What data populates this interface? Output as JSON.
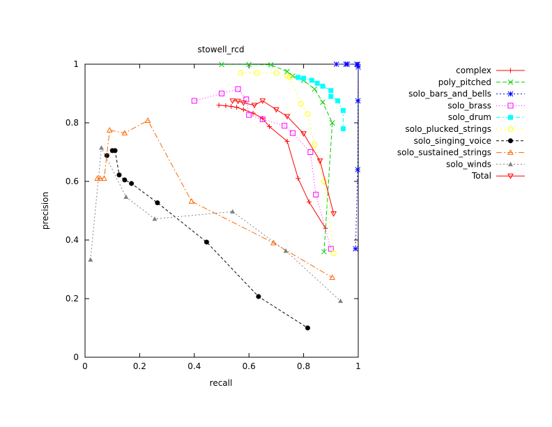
{
  "chart_data": {
    "type": "line",
    "title": "stowell_rcd",
    "xlabel": "recall",
    "ylabel": "precision",
    "xlim": [
      0,
      1
    ],
    "ylim": [
      0,
      1
    ],
    "x_ticks": [
      "0",
      "0.2",
      "0.4",
      "0.6",
      "0.8",
      "1"
    ],
    "y_ticks": [
      "0",
      "0.2",
      "0.4",
      "0.6",
      "0.8",
      "1"
    ],
    "grid": false,
    "legend_position": "right",
    "series": [
      {
        "name": "complex",
        "color": "#ff0000",
        "marker": "plus",
        "dash": "",
        "x": [
          0.49,
          0.515,
          0.535,
          0.555,
          0.58,
          0.615,
          0.65,
          0.675,
          0.74,
          0.78,
          0.82,
          0.88
        ],
        "y": [
          0.86,
          0.858,
          0.856,
          0.853,
          0.845,
          0.833,
          0.815,
          0.787,
          0.737,
          0.61,
          0.53,
          0.44
        ]
      },
      {
        "name": "poly_pitched",
        "color": "#00cc00",
        "marker": "x",
        "dash": "6,3",
        "x": [
          0.5,
          0.6,
          0.68,
          0.74,
          0.76,
          0.8,
          0.84,
          0.87,
          0.905,
          0.875
        ],
        "y": [
          0.999,
          0.999,
          0.998,
          0.975,
          0.96,
          0.945,
          0.915,
          0.87,
          0.8,
          0.36
        ]
      },
      {
        "name": "solo_bars_and_bells",
        "color": "#0000ff",
        "marker": "star",
        "dash": "2,3",
        "x": [
          0.92,
          0.955,
          0.96,
          0.995,
          0.998,
          1.0,
          0.999,
          0.998,
          0.99
        ],
        "y": [
          1.0,
          1.0,
          1.0,
          1.0,
          0.999,
          0.99,
          0.875,
          0.64,
          0.37
        ]
      },
      {
        "name": "solo_brass",
        "color": "#ff00ff",
        "marker": "box",
        "dash": "1,3",
        "x": [
          0.4,
          0.5,
          0.56,
          0.59,
          0.6,
          0.65,
          0.73,
          0.76,
          0.825,
          0.845,
          0.9
        ],
        "y": [
          0.875,
          0.9,
          0.915,
          0.88,
          0.827,
          0.812,
          0.79,
          0.765,
          0.7,
          0.555,
          0.37
        ]
      },
      {
        "name": "solo_drum",
        "color": "#00ffff",
        "marker": "filledbox",
        "dash": "6,3,2,3",
        "x": [
          0.78,
          0.8,
          0.83,
          0.85,
          0.87,
          0.9,
          0.9,
          0.925,
          0.945,
          0.945
        ],
        "y": [
          0.955,
          0.952,
          0.945,
          0.935,
          0.925,
          0.91,
          0.89,
          0.875,
          0.842,
          0.78
        ]
      },
      {
        "name": "solo_plucked_strings",
        "color": "#ffff00",
        "marker": "circle",
        "dash": "2,4",
        "x": [
          0.57,
          0.63,
          0.7,
          0.74,
          0.75,
          0.79,
          0.815,
          0.84,
          0.875,
          0.91
        ],
        "y": [
          0.97,
          0.97,
          0.97,
          0.96,
          0.955,
          0.865,
          0.83,
          0.725,
          0.6,
          0.355
        ]
      },
      {
        "name": "solo_singing_voice",
        "color": "#000000",
        "marker": "filledcircle",
        "dash": "4,3",
        "x": [
          0.08,
          0.1,
          0.11,
          0.125,
          0.145,
          0.17,
          0.265,
          0.445,
          0.635,
          0.815
        ],
        "y": [
          0.688,
          0.705,
          0.705,
          0.622,
          0.605,
          0.593,
          0.527,
          0.393,
          0.207,
          0.1
        ]
      },
      {
        "name": "solo_sustained_strings",
        "color": "#ff6600",
        "marker": "triangle",
        "dash": "8,3,2,3",
        "x": [
          0.045,
          0.055,
          0.07,
          0.09,
          0.145,
          0.23,
          0.39,
          0.69,
          0.905
        ],
        "y": [
          0.61,
          0.61,
          0.61,
          0.775,
          0.765,
          0.808,
          0.532,
          0.39,
          0.272
        ]
      },
      {
        "name": "solo_winds",
        "color": "#808080",
        "marker": "filledtriangle",
        "dash": "2,3",
        "x": [
          0.02,
          0.06,
          0.15,
          0.255,
          0.54,
          0.735,
          0.935
        ],
        "y": [
          0.333,
          0.715,
          0.547,
          0.472,
          0.497,
          0.363,
          0.192
        ]
      },
      {
        "name": "Total",
        "color": "#ff0000",
        "marker": "invtriangle",
        "dash": "",
        "x": [
          0.54,
          0.56,
          0.58,
          0.62,
          0.65,
          0.7,
          0.74,
          0.8,
          0.86,
          0.91
        ],
        "y": [
          0.875,
          0.874,
          0.868,
          0.86,
          0.875,
          0.845,
          0.822,
          0.763,
          0.67,
          0.49
        ]
      }
    ]
  }
}
